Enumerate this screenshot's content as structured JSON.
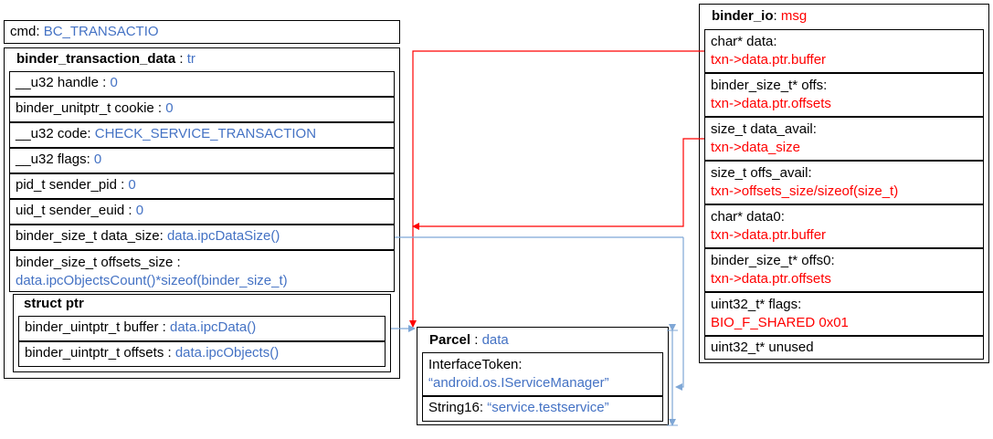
{
  "cmd": {
    "label": "cmd: ",
    "value": "BC_TRANSACTIO"
  },
  "tr": {
    "title": "binder_transaction_data",
    "var": "tr",
    "rows": [
      {
        "label": "__u32 handle : ",
        "value": "0"
      },
      {
        "label": "binder_unitptr_t cookie : ",
        "value": "0"
      },
      {
        "label": "__u32 code: ",
        "value": "CHECK_SERVICE_TRANSACTION"
      },
      {
        "label": "__u32 flags: ",
        "value": "0"
      },
      {
        "label": "pid_t sender_pid : ",
        "value": "0"
      },
      {
        "label": "uid_t sender_euid : ",
        "value": "0"
      },
      {
        "label": "binder_size_t data_size: ",
        "value": "data.ipcDataSize()"
      },
      {
        "label": "binder_size_t offsets_size :",
        "value": "data.ipcObjectsCount()*sizeof(binder_size_t)"
      }
    ],
    "ptr": {
      "title": "struct ptr",
      "rows": [
        {
          "label": "binder_uintptr_t buffer : ",
          "value": "data.ipcData()"
        },
        {
          "label": "binder_uintptr_t offsets : ",
          "value": "data.ipcObjects()"
        }
      ]
    }
  },
  "parcel": {
    "title": "Parcel",
    "var": "data",
    "token_label": "InterfaceToken:",
    "token_value": "“android.os.IServiceManager”",
    "string_label": "String16: ",
    "string_value": "“service.testservice”"
  },
  "bio": {
    "title": "binder_io",
    "var": "msg",
    "rows": [
      {
        "label": "char* data:",
        "value": "txn->data.ptr.buffer"
      },
      {
        "label": "binder_size_t* offs:",
        "value": "txn->data.ptr.offsets"
      },
      {
        "label": "size_t data_avail:",
        "value": "txn->data_size"
      },
      {
        "label": "size_t offs_avail:",
        "value": "txn->offsets_size/sizeof(size_t)"
      },
      {
        "label": "char* data0:",
        "value": "txn->data.ptr.buffer"
      },
      {
        "label": "binder_size_t* offs0:",
        "value": "txn->data.ptr.offsets"
      },
      {
        "label": "uint32_t* flags:",
        "value": "BIO_F_SHARED 0x01"
      }
    ],
    "last": "uint32_t* unused"
  },
  "colors": {
    "accent": "#4472c4",
    "highlight": "#ff0000",
    "arrow_red": "#ff0000",
    "arrow_blue": "#7fa7d6"
  }
}
